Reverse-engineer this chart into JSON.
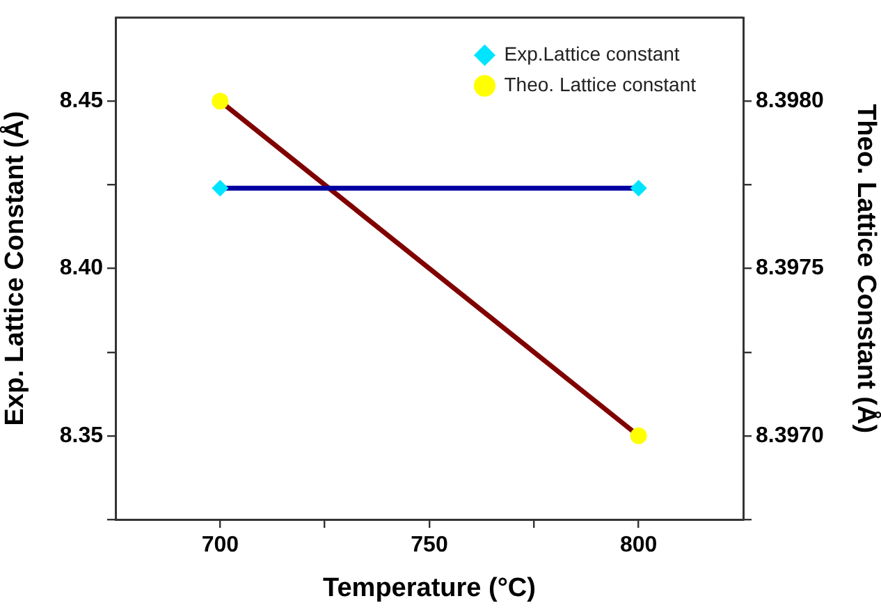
{
  "chart_data": {
    "type": "line",
    "xlabel": "Temperature (°C)",
    "ylabel": "Exp. Lattice Constant (Å)",
    "y2label": "Theo. Lattice Constant (Å)",
    "x": [
      700,
      800
    ],
    "series": [
      {
        "name": "Exp.Lattice constant",
        "color": "#0000a0",
        "values": [
          8.424,
          8.424
        ],
        "marker": "diamond"
      },
      {
        "name": "Theo. Lattice constant",
        "color": "#800000",
        "values": [
          8.398,
          8.397
        ],
        "axis": "y2",
        "marker": "circle"
      }
    ],
    "xlim": [
      675,
      825
    ],
    "xticks": [
      700,
      {
        "value": 725,
        "label": null
      },
      750,
      {
        "value": 775,
        "label": null
      },
      800
    ],
    "ylim": [
      8.325,
      8.475
    ],
    "yticks": [
      {
        "value": 8.325,
        "label": null
      },
      8.35,
      {
        "value": 8.375,
        "label": null
      },
      {
        "value": 8.4,
        "label": "8.40"
      },
      {
        "value": 8.425,
        "label": null
      },
      8.45
    ],
    "y2lim": [
      8.39675,
      8.39825
    ],
    "y2ticks": [
      {
        "value": 8.39675,
        "label": null
      },
      {
        "value": 8.397,
        "label": "8.3970"
      },
      {
        "value": 8.39725,
        "label": null
      },
      8.3975,
      {
        "value": 8.39775,
        "label": null
      },
      {
        "value": 8.398,
        "label": "8.3980"
      }
    ],
    "grid": false,
    "legend": "top right"
  }
}
